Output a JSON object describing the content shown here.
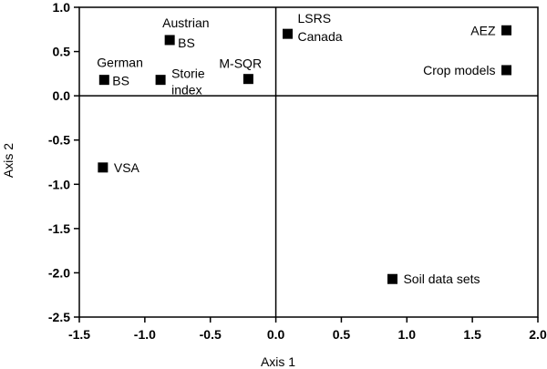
{
  "chart_data": {
    "type": "scatter",
    "xlabel": "Axis 1",
    "ylabel": "Axis 2",
    "xlim": [
      -1.5,
      2.0
    ],
    "ylim": [
      -2.5,
      1.0
    ],
    "xticks": [
      "-1.5",
      "-1.0",
      "-0.5",
      "0.0",
      "0.5",
      "1.0",
      "1.5",
      "2.0"
    ],
    "yticks": [
      "1.0",
      "0.5",
      "0.0",
      "-0.5",
      "-1.0",
      "-1.5",
      "-2.0",
      "-2.5"
    ],
    "grid": false,
    "zero_lines": true,
    "marker_color": "#000000",
    "points": [
      {
        "x": -1.31,
        "y": 0.18,
        "label": [
          "German",
          "BS"
        ]
      },
      {
        "x": -0.81,
        "y": 0.63,
        "label": [
          "Austrian",
          "BS"
        ]
      },
      {
        "x": -0.88,
        "y": 0.18,
        "label": [
          "Storie",
          "index"
        ]
      },
      {
        "x": -0.21,
        "y": 0.19,
        "label": [
          "M-SQR"
        ]
      },
      {
        "x": 0.09,
        "y": 0.7,
        "label": [
          "LSRS",
          "Canada"
        ]
      },
      {
        "x": 1.76,
        "y": 0.74,
        "label": [
          "AEZ"
        ]
      },
      {
        "x": 1.76,
        "y": 0.29,
        "label": [
          "Crop models"
        ]
      },
      {
        "x": -1.32,
        "y": -0.81,
        "label": [
          "VSA"
        ]
      },
      {
        "x": 0.89,
        "y": -2.07,
        "label": [
          "Soil data sets"
        ]
      }
    ]
  }
}
